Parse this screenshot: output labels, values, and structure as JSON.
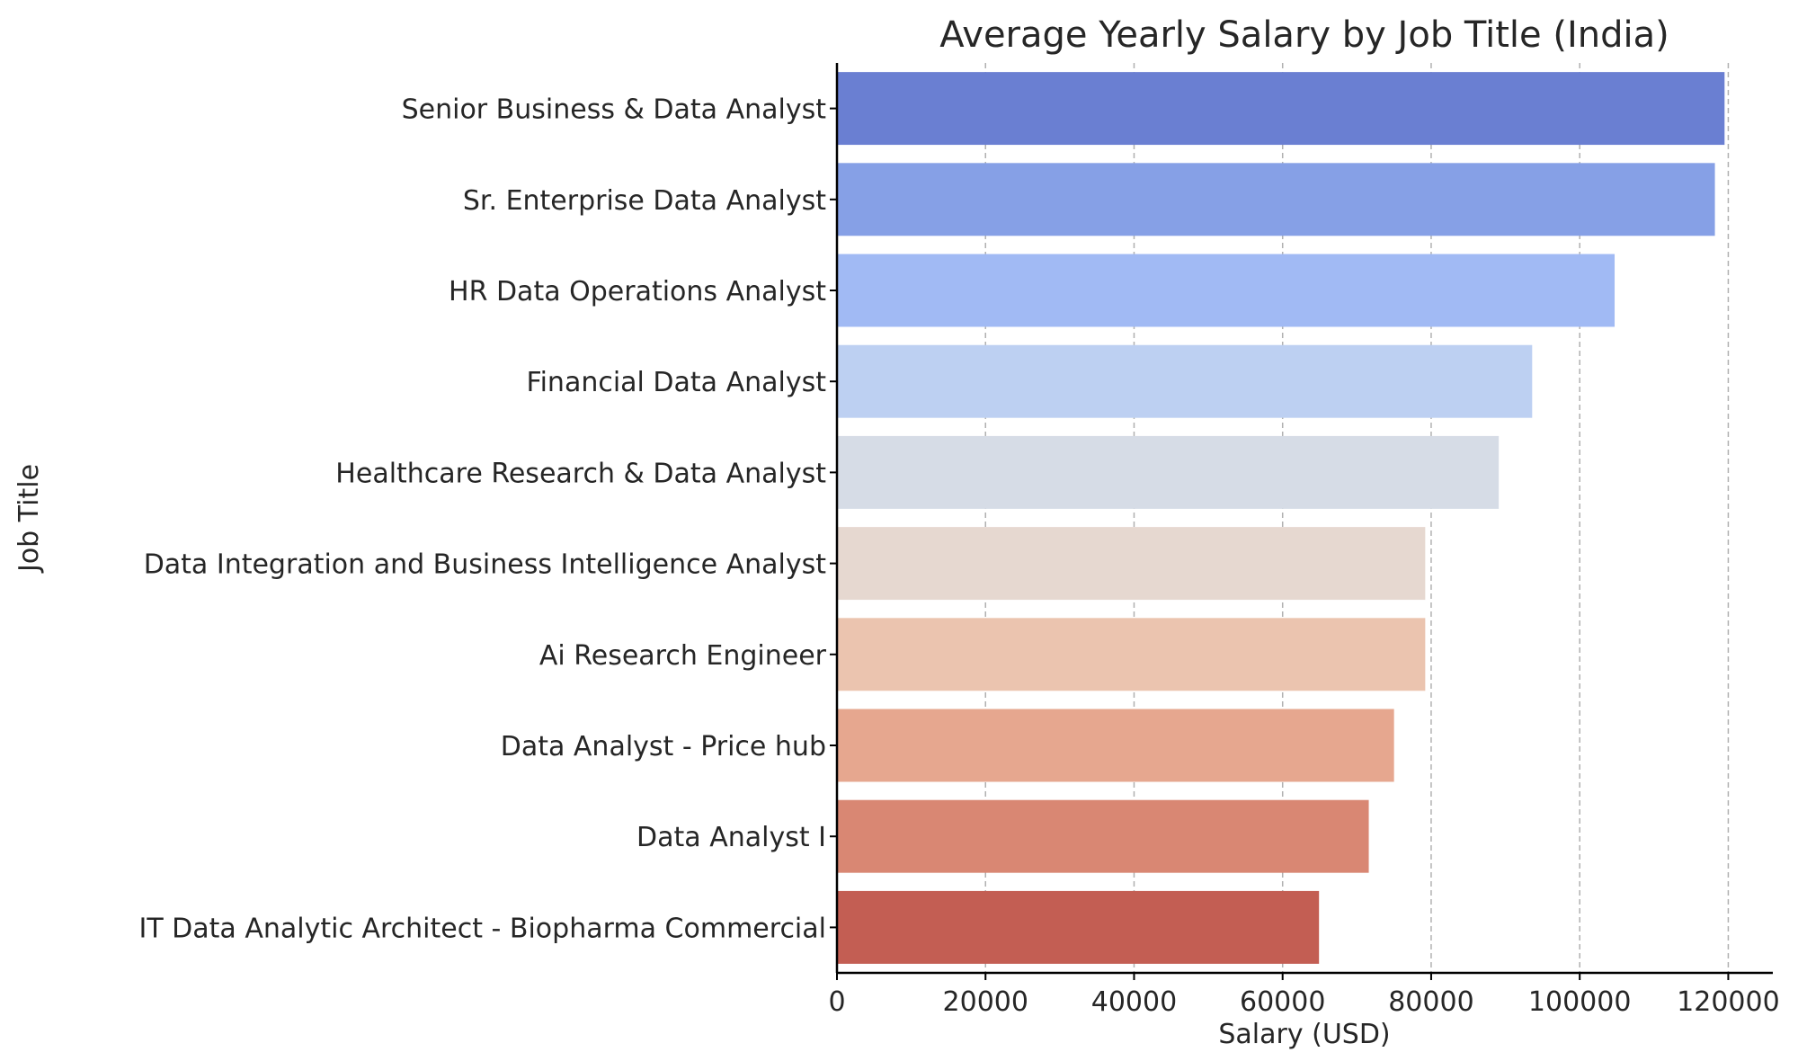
{
  "chart_data": {
    "type": "bar",
    "orientation": "horizontal",
    "title": "Average Yearly Salary by Job Title (India)",
    "xlabel": "Salary (USD)",
    "ylabel": "Job Title",
    "xlim": [
      0,
      126000
    ],
    "xticks": [
      0,
      20000,
      40000,
      60000,
      80000,
      100000,
      120000
    ],
    "grid": "x-dashed",
    "categories": [
      "Senior Business & Data Analyst",
      "Sr. Enterprise Data Analyst",
      "HR Data Operations Analyst",
      "Financial Data Analyst",
      "Healthcare Research & Data Analyst",
      "Data Integration and Business Intelligence Analyst",
      "Ai Research Engineer",
      "Data Analyst - Price hub",
      "Data Analyst I",
      "IT Data Analytic Architect - Biopharma Commercial"
    ],
    "values": [
      119500,
      118200,
      104700,
      93600,
      89100,
      79200,
      79200,
      75000,
      71600,
      64900
    ],
    "colors": [
      "#6a7fd2",
      "#86a0e6",
      "#a1baf4",
      "#bdd0f2",
      "#d6dce6",
      "#e6d8d0",
      "#ebc4af",
      "#e6a78f",
      "#d98773",
      "#c35e53"
    ]
  }
}
